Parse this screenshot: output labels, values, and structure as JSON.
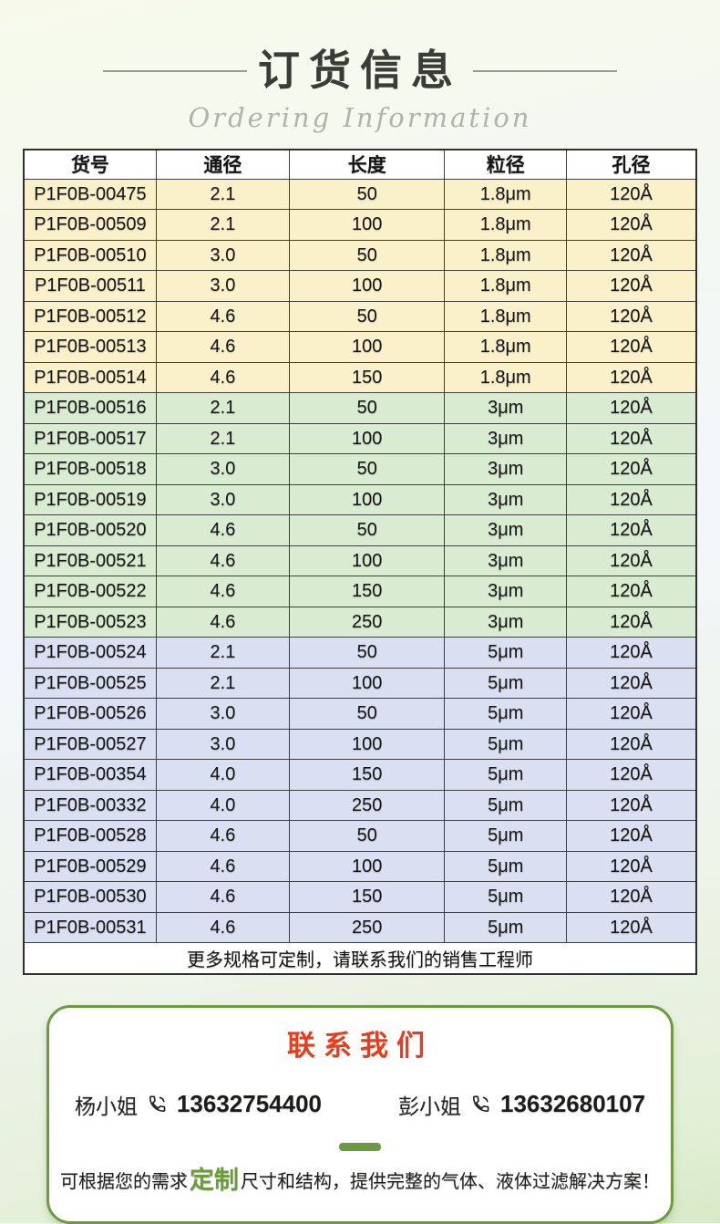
{
  "header": {
    "title": "订货信息",
    "subtitle": "Ordering Information"
  },
  "table": {
    "headers": [
      "货号",
      "通径",
      "长度",
      "粒径",
      "孔径"
    ],
    "col_widths": [
      "19.7%",
      "19.8%",
      "23.1%",
      "18.1%",
      "19.3%"
    ],
    "groups": [
      {
        "color": "#faf0ca",
        "rows": [
          [
            "P1F0B-00475",
            "2.1",
            "50",
            "1.8μm",
            "120Å"
          ],
          [
            "P1F0B-00509",
            "2.1",
            "100",
            "1.8μm",
            "120Å"
          ],
          [
            "P1F0B-00510",
            "3.0",
            "50",
            "1.8μm",
            "120Å"
          ],
          [
            "P1F0B-00511",
            "3.0",
            "100",
            "1.8μm",
            "120Å"
          ],
          [
            "P1F0B-00512",
            "4.6",
            "50",
            "1.8μm",
            "120Å"
          ],
          [
            "P1F0B-00513",
            "4.6",
            "100",
            "1.8μm",
            "120Å"
          ],
          [
            "P1F0B-00514",
            "4.6",
            "150",
            "1.8μm",
            "120Å"
          ]
        ]
      },
      {
        "color": "#d9ecd2",
        "rows": [
          [
            "P1F0B-00516",
            "2.1",
            "50",
            "3μm",
            "120Å"
          ],
          [
            "P1F0B-00517",
            "2.1",
            "100",
            "3μm",
            "120Å"
          ],
          [
            "P1F0B-00518",
            "3.0",
            "50",
            "3μm",
            "120Å"
          ],
          [
            "P1F0B-00519",
            "3.0",
            "100",
            "3μm",
            "120Å"
          ],
          [
            "P1F0B-00520",
            "4.6",
            "50",
            "3μm",
            "120Å"
          ],
          [
            "P1F0B-00521",
            "4.6",
            "100",
            "3μm",
            "120Å"
          ],
          [
            "P1F0B-00522",
            "4.6",
            "150",
            "3μm",
            "120Å"
          ],
          [
            "P1F0B-00523",
            "4.6",
            "250",
            "3μm",
            "120Å"
          ]
        ]
      },
      {
        "color": "#dae0f1",
        "rows": [
          [
            "P1F0B-00524",
            "2.1",
            "50",
            "5μm",
            "120Å"
          ],
          [
            "P1F0B-00525",
            "2.1",
            "100",
            "5μm",
            "120Å"
          ],
          [
            "P1F0B-00526",
            "3.0",
            "50",
            "5μm",
            "120Å"
          ],
          [
            "P1F0B-00527",
            "3.0",
            "100",
            "5μm",
            "120Å"
          ],
          [
            "P1F0B-00354",
            "4.0",
            "150",
            "5μm",
            "120Å"
          ],
          [
            "P1F0B-00332",
            "4.0",
            "250",
            "5μm",
            "120Å"
          ],
          [
            "P1F0B-00528",
            "4.6",
            "50",
            "5μm",
            "120Å"
          ],
          [
            "P1F0B-00529",
            "4.6",
            "100",
            "5μm",
            "120Å"
          ],
          [
            "P1F0B-00530",
            "4.6",
            "150",
            "5μm",
            "120Å"
          ],
          [
            "P1F0B-00531",
            "4.6",
            "250",
            "5μm",
            "120Å"
          ]
        ]
      }
    ],
    "footer_note": "更多规格可定制，请联系我们的销售工程师"
  },
  "contact": {
    "title": "联系我们",
    "contacts": [
      {
        "name": "杨小姐",
        "phone": "13632754400"
      },
      {
        "name": "彭小姐",
        "phone": "13632680107"
      }
    ],
    "note_prefix": "可根据您的需求",
    "note_highlight": "定制",
    "note_suffix": "尺寸和结构，提供完整的气体、液体过滤解决方案！"
  },
  "colors": {
    "accent_green": "#6b9a3f",
    "accent_red": "#e83c1e",
    "group_yellow": "#faf0ca",
    "group_green": "#d9ecd2",
    "group_blue": "#dae0f1",
    "title_text": "#3b3b37",
    "subtitle_text": "#b2b2ab",
    "table_border": "#3f3f3f"
  }
}
